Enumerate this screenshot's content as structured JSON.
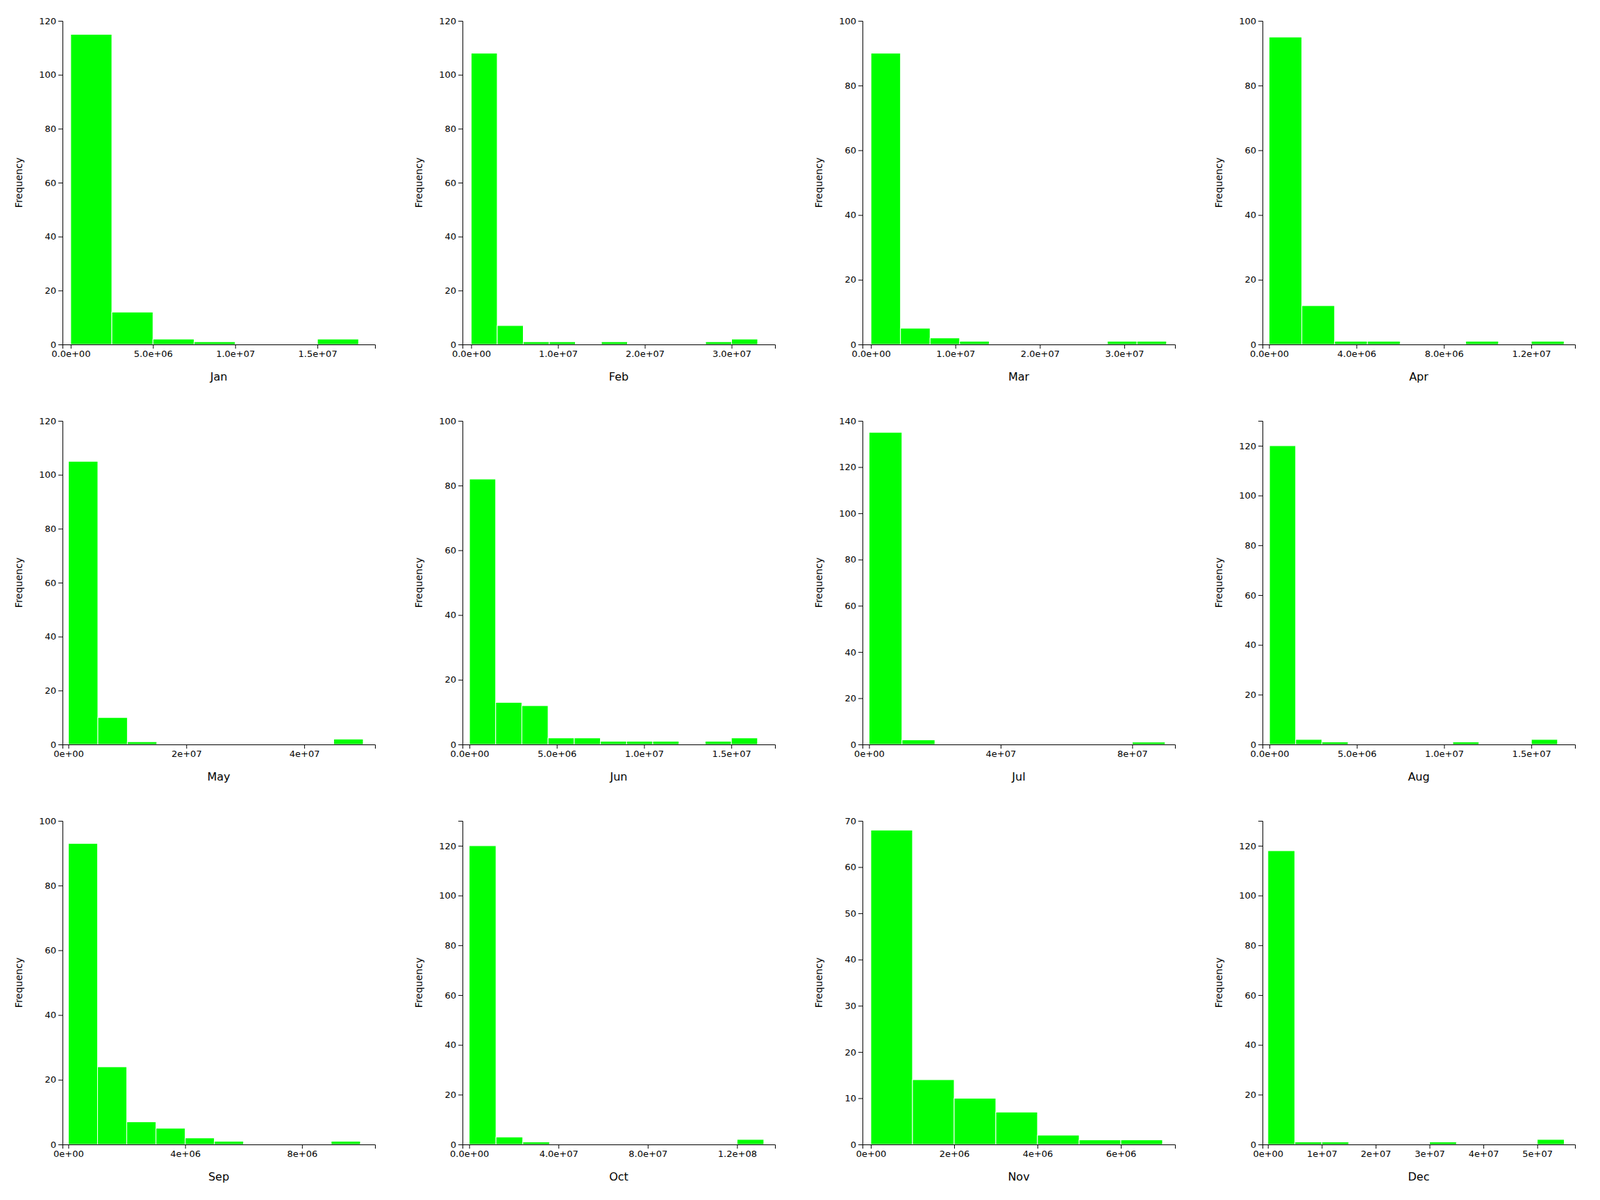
{
  "chart_data": [
    {
      "type": "histogram",
      "xlabel": "Jan",
      "ylabel": "Frequency",
      "color": "#00FF00",
      "bins": [
        0,
        2500000,
        5000000,
        7500000,
        10000000,
        12500000,
        15000000,
        17500000
      ],
      "values": [
        115,
        12,
        2,
        1,
        0,
        0,
        2
      ],
      "xlim": [
        -500000,
        18500000
      ],
      "ylim": [
        0,
        120
      ],
      "xticks": [
        {
          "value": 0,
          "label": "0.0e+00"
        },
        {
          "value": 5000000,
          "label": "5.0e+06"
        },
        {
          "value": 10000000,
          "label": "1.0e+07"
        },
        {
          "value": 15000000,
          "label": "1.5e+07"
        }
      ],
      "yticks": [
        0,
        20,
        40,
        60,
        80,
        100,
        120
      ]
    },
    {
      "type": "histogram",
      "xlabel": "Feb",
      "ylabel": "Frequency",
      "color": "#00FF00",
      "bins": [
        0,
        3000000,
        6000000,
        9000000,
        12000000,
        15000000,
        18000000,
        21000000,
        24000000,
        27000000,
        30000000,
        33000000
      ],
      "values": [
        108,
        7,
        1,
        1,
        0,
        1,
        0,
        0,
        0,
        1,
        2
      ],
      "xlim": [
        -1000000,
        35000000
      ],
      "ylim": [
        0,
        120
      ],
      "xticks": [
        {
          "value": 0,
          "label": "0.0e+00"
        },
        {
          "value": 10000000,
          "label": "1.0e+07"
        },
        {
          "value": 20000000,
          "label": "2.0e+07"
        },
        {
          "value": 30000000,
          "label": "3.0e+07"
        }
      ],
      "yticks": [
        0,
        20,
        40,
        60,
        80,
        100,
        120
      ]
    },
    {
      "type": "histogram",
      "xlabel": "Mar",
      "ylabel": "Frequency",
      "color": "#00FF00",
      "bins": [
        0,
        3500000,
        7000000,
        10500000,
        14000000,
        17500000,
        21000000,
        24500000,
        28000000,
        31500000,
        35000000
      ],
      "values": [
        90,
        5,
        2,
        1,
        0,
        0,
        0,
        0,
        1,
        1
      ],
      "xlim": [
        -1000000,
        36000000
      ],
      "ylim": [
        0,
        100
      ],
      "xticks": [
        {
          "value": 0,
          "label": "0.0e+00"
        },
        {
          "value": 10000000,
          "label": "1.0e+07"
        },
        {
          "value": 20000000,
          "label": "2.0e+07"
        },
        {
          "value": 30000000,
          "label": "3.0e+07"
        }
      ],
      "yticks": [
        0,
        20,
        40,
        60,
        80,
        100
      ]
    },
    {
      "type": "histogram",
      "xlabel": "Apr",
      "ylabel": "Frequency",
      "color": "#00FF00",
      "bins": [
        0,
        1500000,
        3000000,
        4500000,
        6000000,
        7500000,
        9000000,
        10500000,
        12000000,
        13500000
      ],
      "values": [
        95,
        12,
        1,
        1,
        0,
        0,
        1,
        0,
        1
      ],
      "xlim": [
        -300000,
        14000000
      ],
      "ylim": [
        0,
        100
      ],
      "xticks": [
        {
          "value": 0,
          "label": "0.0e+00"
        },
        {
          "value": 4000000,
          "label": "4.0e+06"
        },
        {
          "value": 8000000,
          "label": "8.0e+06"
        },
        {
          "value": 12000000,
          "label": "1.2e+07"
        }
      ],
      "yticks": [
        0,
        20,
        40,
        60,
        80,
        100
      ]
    },
    {
      "type": "histogram",
      "xlabel": "May",
      "ylabel": "Frequency",
      "color": "#00FF00",
      "bins": [
        0,
        5000000,
        10000000,
        15000000,
        20000000,
        25000000,
        30000000,
        35000000,
        40000000,
        45000000,
        50000000
      ],
      "values": [
        105,
        10,
        1,
        0,
        0,
        0,
        0,
        0,
        0,
        2
      ],
      "xlim": [
        -1000000,
        52000000
      ],
      "ylim": [
        0,
        120
      ],
      "xticks": [
        {
          "value": 0,
          "label": "0e+00"
        },
        {
          "value": 20000000,
          "label": "2e+07"
        },
        {
          "value": 40000000,
          "label": "4e+07"
        }
      ],
      "yticks": [
        0,
        20,
        40,
        60,
        80,
        100,
        120
      ]
    },
    {
      "type": "histogram",
      "xlabel": "Jun",
      "ylabel": "Frequency",
      "color": "#00FF00",
      "bins": [
        0,
        1500000,
        3000000,
        4500000,
        6000000,
        7500000,
        9000000,
        10500000,
        12000000,
        13500000,
        15000000,
        16500000
      ],
      "values": [
        82,
        13,
        12,
        2,
        2,
        1,
        1,
        1,
        0,
        1,
        2
      ],
      "xlim": [
        -400000,
        17500000
      ],
      "ylim": [
        0,
        100
      ],
      "xticks": [
        {
          "value": 0,
          "label": "0.0e+00"
        },
        {
          "value": 5000000,
          "label": "5.0e+06"
        },
        {
          "value": 10000000,
          "label": "1.0e+07"
        },
        {
          "value": 15000000,
          "label": "1.5e+07"
        }
      ],
      "yticks": [
        0,
        20,
        40,
        60,
        80,
        100
      ]
    },
    {
      "type": "histogram",
      "xlabel": "Jul",
      "ylabel": "Frequency",
      "color": "#00FF00",
      "bins": [
        0,
        10000000,
        20000000,
        30000000,
        40000000,
        50000000,
        60000000,
        70000000,
        80000000,
        90000000
      ],
      "values": [
        135,
        2,
        0,
        0,
        0,
        0,
        0,
        0,
        1
      ],
      "xlim": [
        -2000000,
        93000000
      ],
      "ylim": [
        0,
        140
      ],
      "xticks": [
        {
          "value": 0,
          "label": "0e+00"
        },
        {
          "value": 40000000,
          "label": "4e+07"
        },
        {
          "value": 80000000,
          "label": "8e+07"
        }
      ],
      "yticks": [
        0,
        20,
        40,
        60,
        80,
        100,
        120,
        140
      ]
    },
    {
      "type": "histogram",
      "xlabel": "Aug",
      "ylabel": "Frequency",
      "color": "#00FF00",
      "bins": [
        0,
        1500000,
        3000000,
        4500000,
        6000000,
        7500000,
        9000000,
        10500000,
        12000000,
        13500000,
        15000000,
        16500000
      ],
      "values": [
        120,
        2,
        1,
        0,
        0,
        0,
        0,
        1,
        0,
        0,
        2
      ],
      "xlim": [
        -400000,
        17500000
      ],
      "ylim": [
        0,
        130
      ],
      "xticks": [
        {
          "value": 0,
          "label": "0.0e+00"
        },
        {
          "value": 5000000,
          "label": "5.0e+06"
        },
        {
          "value": 10000000,
          "label": "1.0e+07"
        },
        {
          "value": 15000000,
          "label": "1.5e+07"
        }
      ],
      "yticks": [
        0,
        20,
        40,
        60,
        80,
        100,
        120
      ]
    },
    {
      "type": "histogram",
      "xlabel": "Sep",
      "ylabel": "Frequency",
      "color": "#00FF00",
      "bins": [
        0,
        1000000,
        2000000,
        3000000,
        4000000,
        5000000,
        6000000,
        7000000,
        8000000,
        9000000,
        10000000
      ],
      "values": [
        93,
        24,
        7,
        5,
        2,
        1,
        0,
        0,
        0,
        1
      ],
      "xlim": [
        -200000,
        10500000
      ],
      "ylim": [
        0,
        100
      ],
      "xticks": [
        {
          "value": 0,
          "label": "0e+00"
        },
        {
          "value": 4000000,
          "label": "4e+06"
        },
        {
          "value": 8000000,
          "label": "8e+06"
        }
      ],
      "yticks": [
        0,
        20,
        40,
        60,
        80,
        100
      ]
    },
    {
      "type": "histogram",
      "xlabel": "Oct",
      "ylabel": "Frequency",
      "color": "#00FF00",
      "bins": [
        0,
        12000000,
        24000000,
        36000000,
        48000000,
        60000000,
        72000000,
        84000000,
        96000000,
        108000000,
        120000000,
        132000000
      ],
      "values": [
        120,
        3,
        1,
        0,
        0,
        0,
        0,
        0,
        0,
        0,
        2
      ],
      "xlim": [
        -3000000,
        137000000
      ],
      "ylim": [
        0,
        130
      ],
      "xticks": [
        {
          "value": 0,
          "label": "0.0e+00"
        },
        {
          "value": 40000000,
          "label": "4.0e+07"
        },
        {
          "value": 80000000,
          "label": "8.0e+07"
        },
        {
          "value": 120000000,
          "label": "1.2e+08"
        }
      ],
      "yticks": [
        0,
        20,
        40,
        60,
        80,
        100,
        120
      ]
    },
    {
      "type": "histogram",
      "xlabel": "Nov",
      "ylabel": "Frequency",
      "color": "#00FF00",
      "bins": [
        0,
        1000000,
        2000000,
        3000000,
        4000000,
        5000000,
        6000000,
        7000000
      ],
      "values": [
        68,
        14,
        10,
        7,
        2,
        1,
        1
      ],
      "xlim": [
        -200000,
        7300000
      ],
      "ylim": [
        0,
        70
      ],
      "xticks": [
        {
          "value": 0,
          "label": "0e+00"
        },
        {
          "value": 2000000,
          "label": "2e+06"
        },
        {
          "value": 4000000,
          "label": "4e+06"
        },
        {
          "value": 6000000,
          "label": "6e+06"
        }
      ],
      "yticks": [
        0,
        10,
        20,
        30,
        40,
        50,
        60,
        70
      ]
    },
    {
      "type": "histogram",
      "xlabel": "Dec",
      "ylabel": "Frequency",
      "color": "#00FF00",
      "bins": [
        0,
        5000000,
        10000000,
        15000000,
        20000000,
        25000000,
        30000000,
        35000000,
        40000000,
        45000000,
        50000000,
        55000000
      ],
      "values": [
        118,
        1,
        1,
        0,
        0,
        0,
        1,
        0,
        0,
        0,
        2
      ],
      "xlim": [
        -1000000,
        57000000
      ],
      "ylim": [
        0,
        130
      ],
      "xticks": [
        {
          "value": 0,
          "label": "0e+00"
        },
        {
          "value": 10000000,
          "label": "1e+07"
        },
        {
          "value": 20000000,
          "label": "2e+07"
        },
        {
          "value": 30000000,
          "label": "3e+07"
        },
        {
          "value": 40000000,
          "label": "4e+07"
        },
        {
          "value": 50000000,
          "label": "5e+07"
        }
      ],
      "yticks": [
        0,
        20,
        40,
        60,
        80,
        100,
        120
      ]
    }
  ]
}
